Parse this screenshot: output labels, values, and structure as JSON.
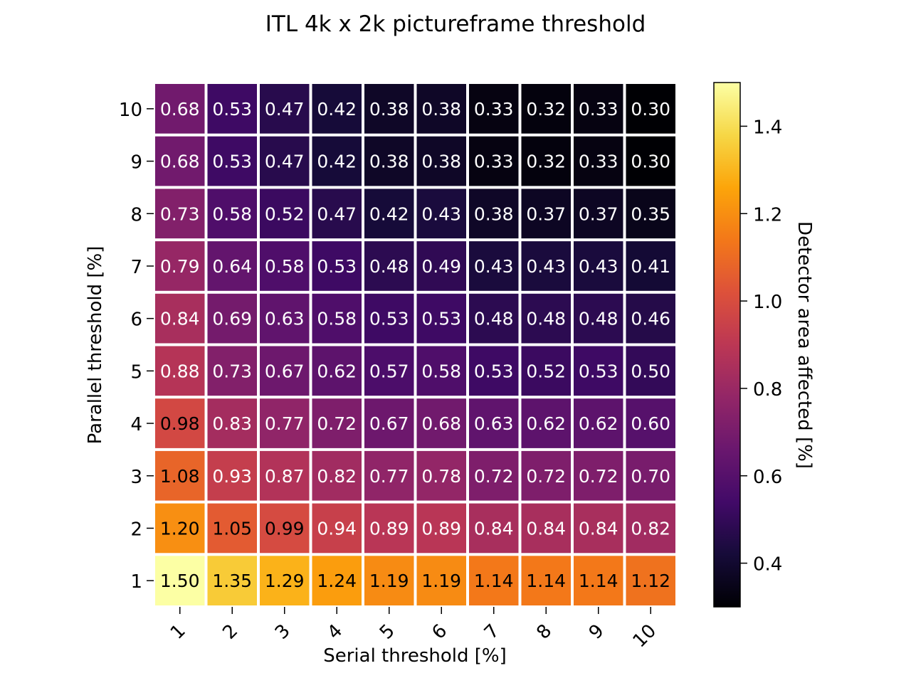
{
  "chart_data": {
    "type": "heatmap",
    "title": "ITL 4k x 2k pictureframe threshold",
    "xlabel": "Serial threshold [%]",
    "ylabel": "Parallel threshold [%]",
    "colorbar_label": "Detector area affected [%]",
    "colormap": "inferno",
    "x": [
      "1",
      "2",
      "3",
      "4",
      "5",
      "6",
      "7",
      "8",
      "9",
      "10"
    ],
    "y": [
      "1",
      "2",
      "3",
      "4",
      "5",
      "6",
      "7",
      "8",
      "9",
      "10"
    ],
    "values": [
      [
        1.5,
        1.35,
        1.29,
        1.24,
        1.19,
        1.19,
        1.14,
        1.14,
        1.14,
        1.12
      ],
      [
        1.2,
        1.05,
        0.99,
        0.94,
        0.89,
        0.89,
        0.84,
        0.84,
        0.84,
        0.82
      ],
      [
        1.08,
        0.93,
        0.87,
        0.82,
        0.77,
        0.78,
        0.72,
        0.72,
        0.72,
        0.7
      ],
      [
        0.98,
        0.83,
        0.77,
        0.72,
        0.67,
        0.68,
        0.63,
        0.62,
        0.62,
        0.6
      ],
      [
        0.88,
        0.73,
        0.67,
        0.62,
        0.57,
        0.58,
        0.53,
        0.52,
        0.53,
        0.5
      ],
      [
        0.84,
        0.69,
        0.63,
        0.58,
        0.53,
        0.53,
        0.48,
        0.48,
        0.48,
        0.46
      ],
      [
        0.79,
        0.64,
        0.58,
        0.53,
        0.48,
        0.49,
        0.43,
        0.43,
        0.43,
        0.41
      ],
      [
        0.73,
        0.58,
        0.52,
        0.47,
        0.42,
        0.43,
        0.38,
        0.37,
        0.37,
        0.35
      ],
      [
        0.68,
        0.53,
        0.47,
        0.42,
        0.38,
        0.38,
        0.33,
        0.32,
        0.33,
        0.3
      ],
      [
        0.68,
        0.53,
        0.47,
        0.42,
        0.38,
        0.38,
        0.33,
        0.32,
        0.33,
        0.3
      ]
    ],
    "value_range": [
      0.3,
      1.5
    ],
    "colorbar_ticks": [
      "0.4",
      "0.6",
      "0.8",
      "1.0",
      "1.2",
      "1.4"
    ],
    "cell_gap_color": "#ffffff"
  }
}
